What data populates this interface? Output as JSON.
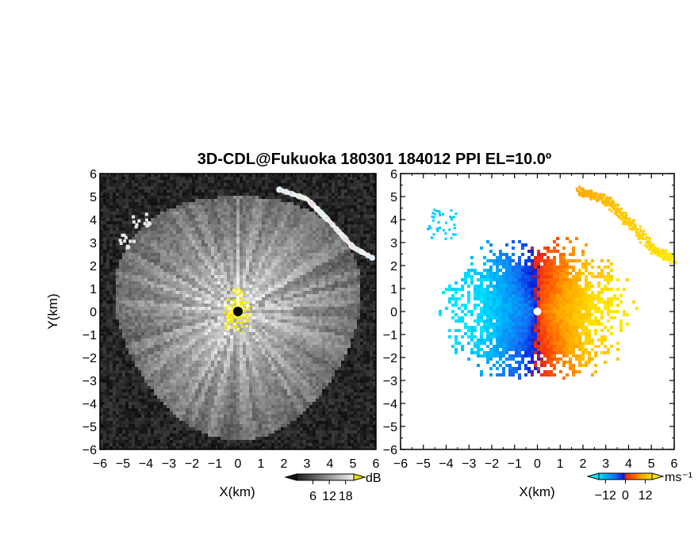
{
  "chart_data": [
    {
      "type": "heatmap",
      "name": "reflectivity-ppi",
      "title": "3D-CDL@Fukuoka 180301 184012 PPI EL=10.0º",
      "xlabel": "X(km)",
      "ylabel": "Y(km)",
      "xlim": [
        -6,
        6
      ],
      "ylim": [
        -6,
        6
      ],
      "xticks": [
        -6,
        -5,
        -4,
        -3,
        -2,
        -1,
        0,
        1,
        2,
        3,
        4,
        5,
        6
      ],
      "yticks": [
        -6,
        -5,
        -4,
        -3,
        -2,
        -1,
        0,
        1,
        2,
        3,
        4,
        5,
        6
      ],
      "xtick_labels": [
        "−6",
        "−5",
        "−4",
        "−3",
        "−2",
        "−1",
        "0",
        "1",
        "2",
        "3",
        "4",
        "5",
        "6"
      ],
      "ytick_labels": [
        "−6",
        "−5",
        "−4",
        "−3",
        "−2",
        "−1",
        "0",
        "1",
        "2",
        "3",
        "4",
        "5",
        "6"
      ],
      "colormap": "grayscale-to-yellow",
      "colorbar": {
        "unit": "dB",
        "ticks": [
          6,
          12,
          18
        ],
        "tick_labels": [
          "6",
          "12",
          "18"
        ]
      },
      "features": {
        "coverage_radius_km": 5.3,
        "echo_arc": [
          [
            1.8,
            5.3
          ],
          [
            3.0,
            4.9
          ],
          [
            4.0,
            3.9
          ],
          [
            5.0,
            2.8
          ],
          [
            5.9,
            2.3
          ]
        ],
        "clutter_patches": [
          [
            -4.3,
            4.0
          ],
          [
            -4.8,
            3.1
          ]
        ],
        "near_range_high_km": 0.6
      }
    },
    {
      "type": "heatmap",
      "name": "doppler-velocity-ppi",
      "xlabel": "X(km)",
      "xlim": [
        -6,
        6
      ],
      "ylim": [
        -6,
        6
      ],
      "xticks": [
        -6,
        -5,
        -4,
        -3,
        -2,
        -1,
        0,
        1,
        2,
        3,
        4,
        5,
        6
      ],
      "yticks": [
        -6,
        -5,
        -4,
        -3,
        -2,
        -1,
        0,
        1,
        2,
        3,
        4,
        5,
        6
      ],
      "xtick_labels": [
        "−6",
        "−5",
        "−4",
        "−3",
        "−2",
        "−1",
        "0",
        "1",
        "2",
        "3",
        "4",
        "5",
        "6"
      ],
      "ytick_labels": [
        "−6",
        "−5",
        "−4",
        "−3",
        "−2",
        "−1",
        "0",
        "1",
        "2",
        "3",
        "4",
        "5",
        "6"
      ],
      "colormap": "cyan-blue-red-yellow",
      "colorbar": {
        "unit": "ms⁻¹",
        "ticks": [
          -12,
          0,
          12
        ],
        "tick_labels": [
          "−12",
          "0",
          "12"
        ]
      },
      "features": {
        "velocity_range": [
          -16,
          16
        ],
        "negative_side": "west",
        "positive_side": "east",
        "echo_arc": [
          [
            1.8,
            5.3
          ],
          [
            3.0,
            4.9
          ],
          [
            4.0,
            3.9
          ],
          [
            5.0,
            2.8
          ],
          [
            5.9,
            2.3
          ]
        ]
      }
    }
  ]
}
